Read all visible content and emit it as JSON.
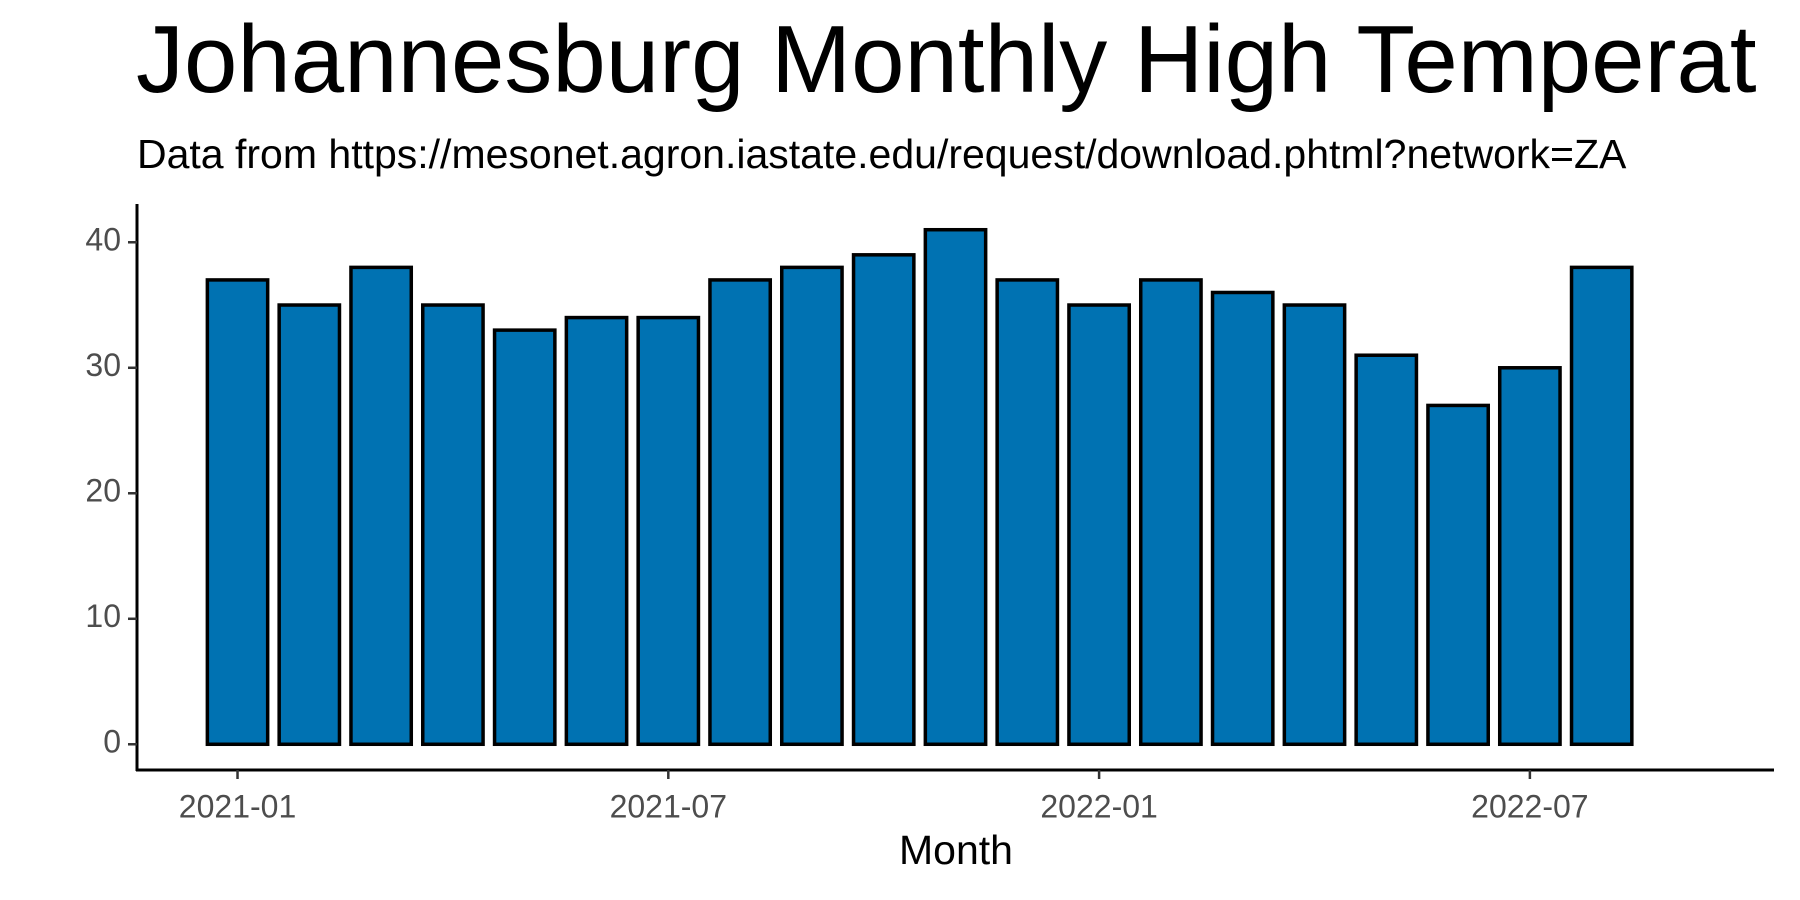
{
  "chart_data": {
    "type": "bar",
    "title": "Johannesburg Monthly High Temperat",
    "subtitle": "Data from https://mesonet.agron.iastate.edu/request/download.phtml?network=ZA",
    "x_label": "Month",
    "x": [
      "2021-01",
      "2021-02",
      "2021-03",
      "2021-04",
      "2021-05",
      "2021-06",
      "2021-07",
      "2021-08",
      "2021-09",
      "2021-10",
      "2021-11",
      "2021-12",
      "2022-01",
      "2022-02",
      "2022-03",
      "2022-04",
      "2022-05",
      "2022-06",
      "2022-07",
      "2022-08"
    ],
    "values": [
      37,
      35,
      38,
      35,
      33,
      34,
      34,
      37,
      38,
      39,
      41,
      37,
      35,
      37,
      36,
      35,
      31,
      27,
      30,
      38
    ],
    "color": "#0072B2",
    "xticks": [
      "2021-01",
      "2021-07",
      "2022-01",
      "2022-07"
    ],
    "ylim": [
      -2.05,
      43.05
    ],
    "yticks": [
      0,
      10,
      20,
      30,
      40
    ],
    "grid": false
  }
}
